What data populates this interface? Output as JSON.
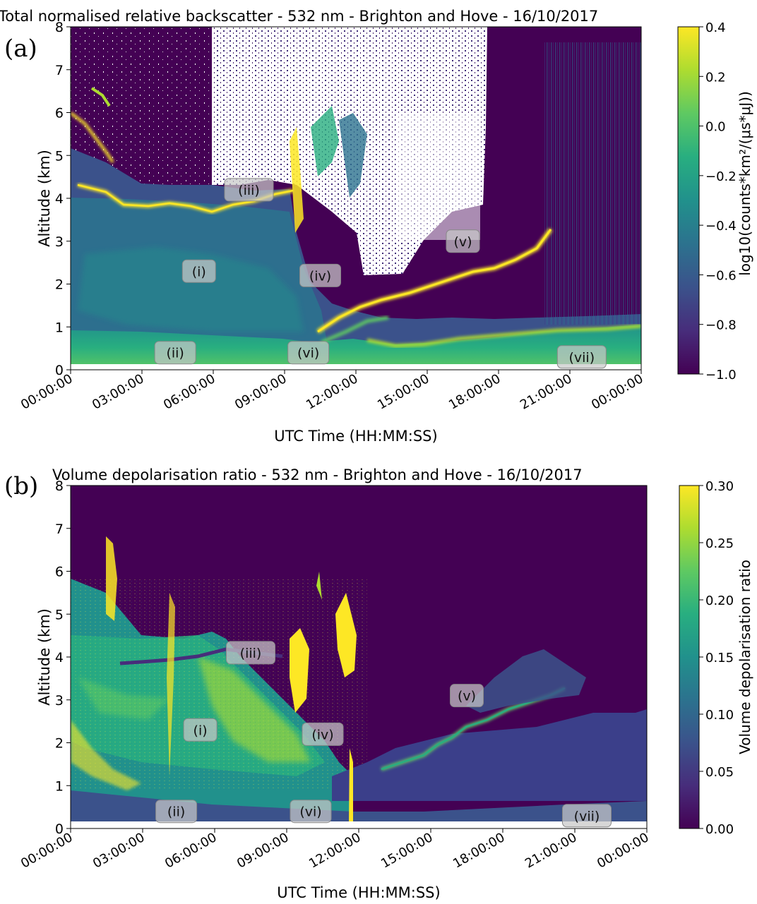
{
  "figure": {
    "panels": [
      "a",
      "b"
    ]
  },
  "chart_data": [
    {
      "panel_label": "(a)",
      "type": "heatmap",
      "title": "Total normalised relative backscatter - 532 nm - Brighton and Hove - 16/10/2017",
      "xlabel": "UTC Time (HH:MM:SS)",
      "ylabel": "Altitude (km)",
      "xlim_hours": [
        0,
        24
      ],
      "ylim": [
        0,
        8
      ],
      "xticks": [
        0,
        3,
        6,
        9,
        12,
        15,
        18,
        21,
        24
      ],
      "xtick_labels": [
        "00:00:00",
        "03:00:00",
        "06:00:00",
        "09:00:00",
        "12:00:00",
        "15:00:00",
        "18:00:00",
        "21:00:00",
        "00:00:00"
      ],
      "yticks": [
        0,
        1,
        2,
        3,
        4,
        5,
        6,
        7,
        8
      ],
      "colorbar": {
        "label": "log10(counts*km²/(μs*μJ))",
        "range": [
          -1.0,
          0.4
        ],
        "ticks": [
          0.4,
          0.2,
          0.0,
          -0.2,
          -0.4,
          -0.6,
          -0.8,
          -1.0
        ],
        "tick_labels": [
          "0.4",
          "0.2",
          "0.0",
          "−0.2",
          "−0.4",
          "−0.6",
          "−0.8",
          "−1.0"
        ],
        "colormap": "viridis"
      },
      "features": [
        {
          "label": "(i)",
          "time_h": 5.4,
          "alt_km": 2.3
        },
        {
          "label": "(ii)",
          "time_h": 4.4,
          "alt_km": 0.4
        },
        {
          "label": "(iii)",
          "time_h": 7.5,
          "alt_km": 4.2
        },
        {
          "label": "(iv)",
          "time_h": 10.5,
          "alt_km": 2.2
        },
        {
          "label": "(v)",
          "time_h": 16.5,
          "alt_km": 3.0
        },
        {
          "label": "(vi)",
          "time_h": 10.0,
          "alt_km": 0.4
        },
        {
          "label": "(vii)",
          "time_h": 21.5,
          "alt_km": 0.3
        }
      ],
      "layers": {
        "residual_layer_alt_km": [
          [
            0.5,
            3.9
          ],
          [
            2.5,
            3.95
          ],
          [
            4.5,
            4.0
          ],
          [
            5.5,
            3.8
          ],
          [
            7.0,
            3.9
          ],
          [
            8.5,
            4.1
          ],
          [
            9.3,
            4.3
          ]
        ],
        "elevated_layer_alt_km": [
          [
            10.5,
            1.1
          ],
          [
            12.0,
            1.6
          ],
          [
            14.0,
            1.8
          ],
          [
            15.5,
            2.1
          ],
          [
            17.0,
            2.3
          ],
          [
            18.5,
            2.4
          ],
          [
            19.5,
            2.7
          ],
          [
            20.0,
            3.0
          ]
        ],
        "boundary_layer_top_km": [
          [
            0,
            0.9
          ],
          [
            3,
            0.9
          ],
          [
            6,
            0.9
          ],
          [
            9,
            0.8
          ],
          [
            10.5,
            0.6
          ],
          [
            13,
            0.7
          ],
          [
            15,
            0.7
          ],
          [
            18,
            0.8
          ],
          [
            21,
            1.0
          ],
          [
            24,
            1.1
          ]
        ],
        "cloud_region_hours": [
          [
            6.0,
            17.5
          ]
        ]
      }
    },
    {
      "panel_label": "(b)",
      "type": "heatmap",
      "title": "Volume depolarisation ratio - 532 nm - Brighton and Hove - 16/10/2017",
      "xlabel": "UTC Time (HH:MM:SS)",
      "ylabel": "Altitude (km)",
      "xlim_hours": [
        0,
        24
      ],
      "ylim": [
        0,
        8
      ],
      "xticks": [
        0,
        3,
        6,
        9,
        12,
        15,
        18,
        21,
        24
      ],
      "xtick_labels": [
        "00:00:00",
        "03:00:00",
        "06:00:00",
        "09:00:00",
        "12:00:00",
        "15:00:00",
        "18:00:00",
        "21:00:00",
        "00:00:00"
      ],
      "yticks": [
        0,
        1,
        2,
        3,
        4,
        5,
        6,
        7,
        8
      ],
      "colorbar": {
        "label": "Volume depolarisation ratio",
        "range": [
          0.0,
          0.3
        ],
        "ticks": [
          0.3,
          0.25,
          0.2,
          0.15,
          0.1,
          0.05,
          0.0
        ],
        "tick_labels": [
          "0.30",
          "0.25",
          "0.20",
          "0.15",
          "0.10",
          "0.05",
          "0.00"
        ],
        "colormap": "viridis"
      },
      "features": [
        {
          "label": "(i)",
          "time_h": 5.4,
          "alt_km": 2.3
        },
        {
          "label": "(ii)",
          "time_h": 4.4,
          "alt_km": 0.4
        },
        {
          "label": "(iii)",
          "time_h": 7.5,
          "alt_km": 4.1
        },
        {
          "label": "(iv)",
          "time_h": 10.5,
          "alt_km": 2.2
        },
        {
          "label": "(v)",
          "time_h": 16.5,
          "alt_km": 3.1
        },
        {
          "label": "(vi)",
          "time_h": 10.0,
          "alt_km": 0.4
        },
        {
          "label": "(vii)",
          "time_h": 21.5,
          "alt_km": 0.3
        }
      ]
    }
  ]
}
